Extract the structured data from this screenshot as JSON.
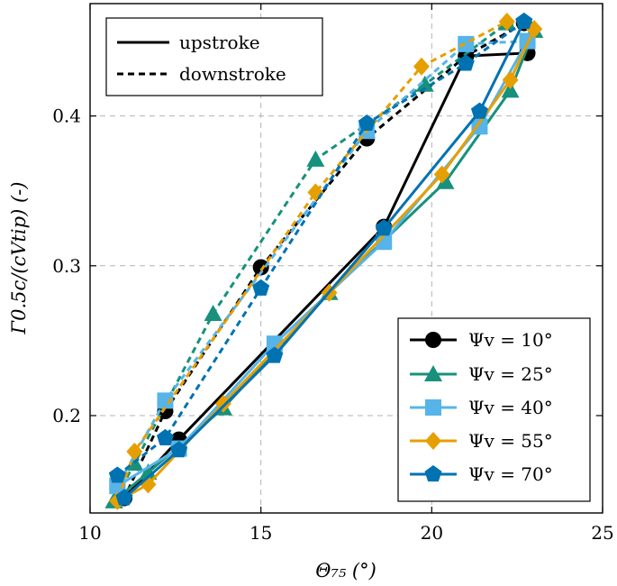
{
  "chart_data": {
    "type": "line",
    "xlabel": "Θ₇₅ (°)",
    "ylabel": "Γ0.5c/(cVtip) (-)",
    "xlim": [
      10,
      25
    ],
    "ylim": [
      0.135,
      0.475
    ],
    "xticks": [
      10,
      15,
      20,
      25
    ],
    "xtick_labels": [
      "10",
      "15",
      "20",
      "25"
    ],
    "yticks": [
      0.2,
      0.3,
      0.4
    ],
    "ytick_labels": [
      "0.2",
      "0.3",
      "0.4"
    ],
    "grid": true,
    "style_legend": {
      "position": "top-left",
      "entries": [
        {
          "label": "upstroke",
          "dash": "solid"
        },
        {
          "label": "downstroke",
          "dash": "dashed"
        }
      ]
    },
    "series_legend": {
      "position": "bottom-right",
      "entries": [
        {
          "label": "Ψv = 10°",
          "series": 0
        },
        {
          "label": "Ψv = 25°",
          "series": 1
        },
        {
          "label": "Ψv = 40°",
          "series": 2
        },
        {
          "label": "Ψv = 55°",
          "series": 3
        },
        {
          "label": "Ψv = 70°",
          "series": 4
        }
      ]
    },
    "series": [
      {
        "name": "Ψv = 10°",
        "color": "#000000",
        "marker": "circle",
        "upstroke": [
          [
            11.0,
            0.145
          ],
          [
            12.6,
            0.184
          ],
          [
            18.6,
            0.326
          ],
          [
            21.0,
            0.44
          ],
          [
            22.8,
            0.442
          ]
        ],
        "downstroke": [
          [
            22.7,
            0.462
          ],
          [
            21.0,
            0.44
          ],
          [
            18.1,
            0.385
          ],
          [
            15.0,
            0.299
          ],
          [
            12.2,
            0.203
          ],
          [
            11.0,
            0.145
          ]
        ]
      },
      {
        "name": "Ψv = 25°",
        "color": "#17917c",
        "marker": "triangle",
        "upstroke": [
          [
            10.7,
            0.143
          ],
          [
            11.7,
            0.162
          ],
          [
            13.9,
            0.205
          ],
          [
            17.0,
            0.282
          ],
          [
            20.4,
            0.356
          ],
          [
            22.3,
            0.417
          ],
          [
            23.0,
            0.457
          ]
        ],
        "downstroke": [
          [
            23.0,
            0.457
          ],
          [
            22.2,
            0.462
          ],
          [
            19.8,
            0.421
          ],
          [
            16.6,
            0.371
          ],
          [
            13.6,
            0.268
          ],
          [
            11.3,
            0.168
          ],
          [
            10.7,
            0.143
          ]
        ]
      },
      {
        "name": "Ψv = 40°",
        "color": "#56b4e9",
        "marker": "square",
        "upstroke": [
          [
            10.8,
            0.153
          ],
          [
            12.6,
            0.178
          ],
          [
            15.4,
            0.248
          ],
          [
            18.6,
            0.316
          ],
          [
            21.4,
            0.393
          ],
          [
            22.8,
            0.45
          ]
        ],
        "downstroke": [
          [
            22.8,
            0.45
          ],
          [
            21.0,
            0.448
          ],
          [
            18.1,
            0.39
          ],
          [
            12.2,
            0.21
          ],
          [
            10.8,
            0.153
          ]
        ]
      },
      {
        "name": "Ψv = 55°",
        "color": "#e69f00",
        "marker": "diamond",
        "upstroke": [
          [
            10.8,
            0.143
          ],
          [
            11.7,
            0.154
          ],
          [
            13.9,
            0.208
          ],
          [
            17.0,
            0.282
          ],
          [
            20.3,
            0.361
          ],
          [
            22.3,
            0.424
          ],
          [
            23.0,
            0.458
          ]
        ],
        "downstroke": [
          [
            23.0,
            0.458
          ],
          [
            22.2,
            0.463
          ],
          [
            19.7,
            0.433
          ],
          [
            16.6,
            0.349
          ],
          [
            11.3,
            0.176
          ],
          [
            10.8,
            0.143
          ]
        ]
      },
      {
        "name": "Ψv = 70°",
        "color": "#0072b2",
        "marker": "pentagon",
        "upstroke": [
          [
            11.0,
            0.145
          ],
          [
            12.6,
            0.177
          ],
          [
            15.4,
            0.24
          ],
          [
            18.6,
            0.325
          ],
          [
            21.4,
            0.403
          ],
          [
            22.7,
            0.463
          ]
        ],
        "downstroke": [
          [
            22.7,
            0.463
          ],
          [
            21.0,
            0.435
          ],
          [
            18.1,
            0.395
          ],
          [
            15.0,
            0.285
          ],
          [
            12.2,
            0.185
          ],
          [
            10.8,
            0.16
          ]
        ]
      }
    ]
  }
}
